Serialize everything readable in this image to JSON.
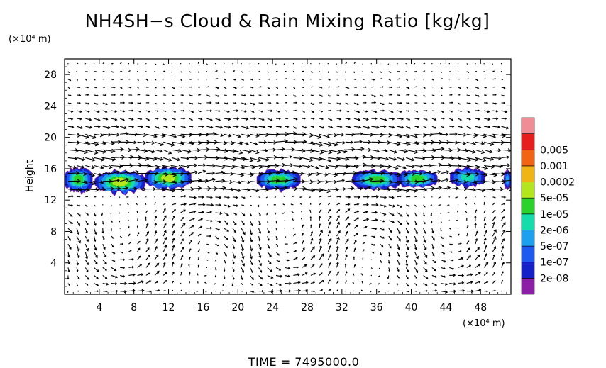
{
  "chart_data": {
    "type": "heatmap",
    "title": "NH4SH−s Cloud & Rain Mixing Ratio [kg/kg]",
    "ylabel": "Height",
    "y_unit": "(×10⁴ m)",
    "x_unit": "(×10⁴ m)",
    "time_label": "TIME  =  7495000.0",
    "xlim": [
      0,
      51.5
    ],
    "ylim": [
      0,
      30
    ],
    "x_ticks": [
      4,
      8,
      12,
      16,
      20,
      24,
      28,
      32,
      36,
      40,
      44,
      48
    ],
    "y_ticks": [
      4,
      8,
      12,
      16,
      20,
      24,
      28
    ],
    "legend": {
      "position": "right",
      "levels": [
        "2e-08",
        "1e-07",
        "5e-07",
        "2e-06",
        "1e-05",
        "5e-05",
        "0.0002",
        "0.001",
        "0.005"
      ],
      "colors": [
        "#8c1ea8",
        "#1420c8",
        "#1e5af0",
        "#1ea0f0",
        "#14dcaa",
        "#2ad22a",
        "#b4e61e",
        "#f0b414",
        "#f06414",
        "#e61e1e",
        "#f08c96"
      ]
    },
    "cloud_patches": [
      {
        "x0": 0,
        "x1": 3.2,
        "y": 14.6,
        "thick": 3.0,
        "peak": 4
      },
      {
        "x0": 3.5,
        "x1": 9.3,
        "y": 14.3,
        "thick": 2.8,
        "peak": 5
      },
      {
        "x0": 9.3,
        "x1": 14.6,
        "y": 14.8,
        "thick": 2.6,
        "peak": 5
      },
      {
        "x0": 22.2,
        "x1": 27.2,
        "y": 14.6,
        "thick": 2.4,
        "peak": 4
      },
      {
        "x0": 33.2,
        "x1": 38.8,
        "y": 14.6,
        "thick": 2.3,
        "peak": 4
      },
      {
        "x0": 38.5,
        "x1": 43.0,
        "y": 14.7,
        "thick": 2.2,
        "peak": 4
      },
      {
        "x0": 44.5,
        "x1": 48.5,
        "y": 14.9,
        "thick": 2.2,
        "peak": 3
      },
      {
        "x0": 50.7,
        "x1": 51.5,
        "y": 14.6,
        "thick": 2.2,
        "peak": 2
      }
    ]
  }
}
